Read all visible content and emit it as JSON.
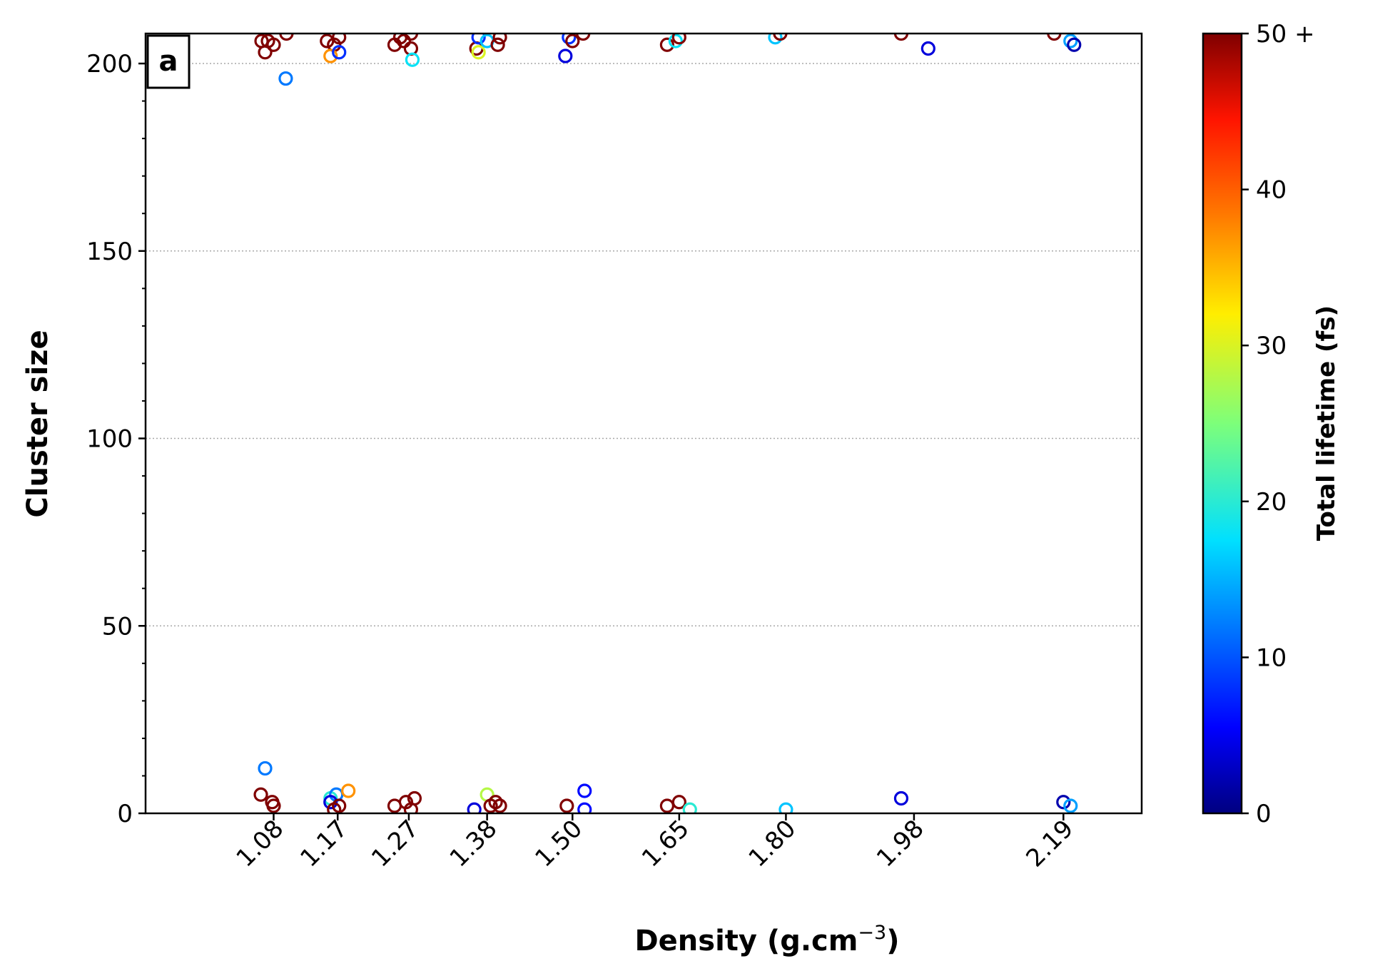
{
  "chart_data": {
    "type": "scatter",
    "panel_label": "a",
    "xlabel_main": "Density (g.cm",
    "xlabel_exp": "−3",
    "xlabel_close": ")",
    "ylabel": "Cluster size",
    "x_ticks": [
      "1.08",
      "1.17",
      "1.27",
      "1.38",
      "1.50",
      "1.65",
      "1.80",
      "1.98",
      "2.19"
    ],
    "x_tick_values": [
      1.08,
      1.17,
      1.27,
      1.38,
      1.5,
      1.65,
      1.8,
      1.98,
      2.19
    ],
    "xlim": [
      0.9,
      2.3
    ],
    "ylim": [
      0,
      208
    ],
    "y_ticks": [
      0,
      50,
      100,
      150,
      200
    ],
    "y_tick_labels": [
      "0",
      "50",
      "100",
      "150",
      "200"
    ],
    "y_grid": true,
    "marker": "open-circle",
    "colorbar": {
      "title": "Total lifetime (fs)",
      "ticks": [
        0,
        10,
        20,
        30,
        40,
        50
      ],
      "tick_labels": [
        "0",
        "10",
        "20",
        "30",
        "40",
        "50 +"
      ],
      "range": [
        0,
        50
      ],
      "colormap": "jet"
    },
    "points": [
      {
        "x": 1.063,
        "y": 206,
        "c": 50
      },
      {
        "x": 1.072,
        "y": 206,
        "c": 50
      },
      {
        "x": 1.08,
        "y": 205,
        "c": 50
      },
      {
        "x": 1.068,
        "y": 203,
        "c": 50
      },
      {
        "x": 1.098,
        "y": 208,
        "c": 50
      },
      {
        "x": 1.097,
        "y": 196,
        "c": 12
      },
      {
        "x": 1.068,
        "y": 12,
        "c": 12
      },
      {
        "x": 1.062,
        "y": 5,
        "c": 50
      },
      {
        "x": 1.078,
        "y": 3,
        "c": 50
      },
      {
        "x": 1.08,
        "y": 2,
        "c": 50
      },
      {
        "x": 1.155,
        "y": 206,
        "c": 50
      },
      {
        "x": 1.165,
        "y": 205,
        "c": 50
      },
      {
        "x": 1.172,
        "y": 207,
        "c": 50
      },
      {
        "x": 1.16,
        "y": 202,
        "c": 37
      },
      {
        "x": 1.172,
        "y": 203,
        "c": 8
      },
      {
        "x": 1.16,
        "y": 4,
        "c": 20
      },
      {
        "x": 1.168,
        "y": 5,
        "c": 12
      },
      {
        "x": 1.16,
        "y": 3,
        "c": 4
      },
      {
        "x": 1.172,
        "y": 2,
        "c": 50
      },
      {
        "x": 1.165,
        "y": 1,
        "c": 50
      },
      {
        "x": 1.185,
        "y": 6,
        "c": 37
      },
      {
        "x": 1.25,
        "y": 205,
        "c": 50
      },
      {
        "x": 1.258,
        "y": 207,
        "c": 50
      },
      {
        "x": 1.263,
        "y": 206,
        "c": 50
      },
      {
        "x": 1.273,
        "y": 204,
        "c": 50
      },
      {
        "x": 1.275,
        "y": 201,
        "c": 18
      },
      {
        "x": 1.273,
        "y": 208,
        "c": 50
      },
      {
        "x": 1.25,
        "y": 2,
        "c": 50
      },
      {
        "x": 1.266,
        "y": 3,
        "c": 50
      },
      {
        "x": 1.278,
        "y": 4,
        "c": 50
      },
      {
        "x": 1.273,
        "y": 1,
        "c": 50
      },
      {
        "x": 1.365,
        "y": 204,
        "c": 50
      },
      {
        "x": 1.368,
        "y": 203,
        "c": 30
      },
      {
        "x": 1.368,
        "y": 207,
        "c": 8
      },
      {
        "x": 1.38,
        "y": 206,
        "c": 16
      },
      {
        "x": 1.395,
        "y": 205,
        "c": 50
      },
      {
        "x": 1.398,
        "y": 207,
        "c": 50
      },
      {
        "x": 1.362,
        "y": 1,
        "c": 4
      },
      {
        "x": 1.38,
        "y": 5,
        "c": 28
      },
      {
        "x": 1.385,
        "y": 2,
        "c": 50
      },
      {
        "x": 1.392,
        "y": 3,
        "c": 50
      },
      {
        "x": 1.398,
        "y": 2,
        "c": 50
      },
      {
        "x": 1.49,
        "y": 202,
        "c": 4
      },
      {
        "x": 1.495,
        "y": 207,
        "c": 8
      },
      {
        "x": 1.5,
        "y": 206,
        "c": 50
      },
      {
        "x": 1.515,
        "y": 208,
        "c": 50
      },
      {
        "x": 1.492,
        "y": 2,
        "c": 50
      },
      {
        "x": 1.517,
        "y": 6,
        "c": 6
      },
      {
        "x": 1.517,
        "y": 1,
        "c": 6
      },
      {
        "x": 1.633,
        "y": 205,
        "c": 50
      },
      {
        "x": 1.645,
        "y": 206,
        "c": 18
      },
      {
        "x": 1.65,
        "y": 207,
        "c": 50
      },
      {
        "x": 1.633,
        "y": 2,
        "c": 50
      },
      {
        "x": 1.65,
        "y": 3,
        "c": 50
      },
      {
        "x": 1.665,
        "y": 1,
        "c": 20
      },
      {
        "x": 1.785,
        "y": 207,
        "c": 16
      },
      {
        "x": 1.792,
        "y": 208,
        "c": 50
      },
      {
        "x": 1.8,
        "y": 1,
        "c": 16
      },
      {
        "x": 1.962,
        "y": 208,
        "c": 50
      },
      {
        "x": 2.0,
        "y": 204,
        "c": 4
      },
      {
        "x": 1.962,
        "y": 4,
        "c": 4
      },
      {
        "x": 2.177,
        "y": 208,
        "c": 50
      },
      {
        "x": 2.2,
        "y": 206,
        "c": 14
      },
      {
        "x": 2.205,
        "y": 205,
        "c": 2
      },
      {
        "x": 2.19,
        "y": 3,
        "c": 2
      },
      {
        "x": 2.2,
        "y": 2,
        "c": 14
      }
    ]
  }
}
